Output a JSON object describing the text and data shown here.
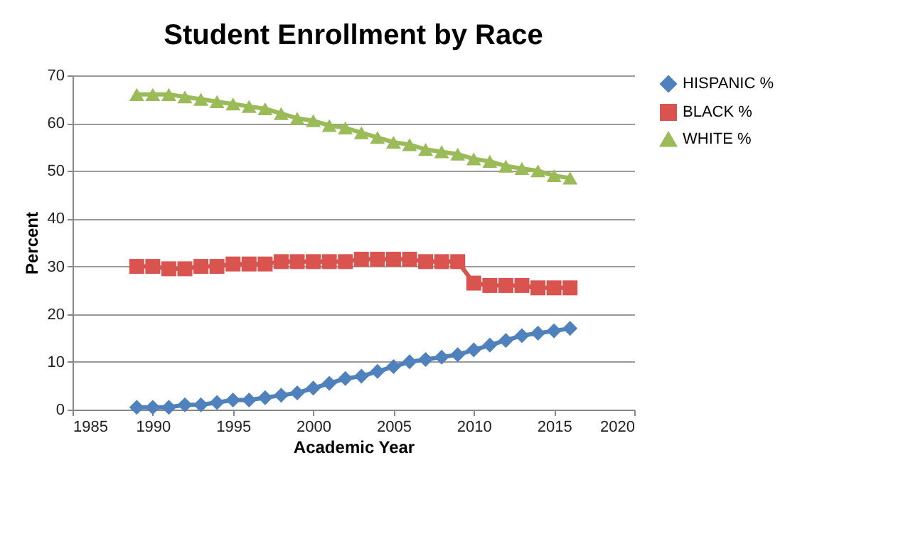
{
  "chart_data": {
    "type": "line",
    "title": "Student Enrollment by Race",
    "xlabel": "Academic Year",
    "ylabel": "Percent",
    "x": [
      1989,
      1990,
      1991,
      1992,
      1993,
      1994,
      1995,
      1996,
      1997,
      1998,
      1999,
      2000,
      2001,
      2002,
      2003,
      2004,
      2005,
      2006,
      2007,
      2008,
      2009,
      2010,
      2011,
      2012,
      2013,
      2014,
      2015,
      2016
    ],
    "series": [
      {
        "name": "HISPANIC %",
        "color": "#4f81bd",
        "marker": "diamond",
        "values": [
          0.5,
          0.5,
          0.5,
          1,
          1,
          1.5,
          2,
          2,
          2.5,
          3,
          3.5,
          4.5,
          5.5,
          6.5,
          7,
          8,
          9,
          10,
          10.5,
          11,
          11.5,
          12.5,
          13.5,
          14.5,
          15.5,
          16,
          16.5,
          17
        ]
      },
      {
        "name": "BLACK %",
        "color": "#d9534f",
        "marker": "square",
        "values": [
          30,
          30,
          29.5,
          29.5,
          30,
          30,
          30.5,
          30.5,
          30.5,
          31,
          31,
          31,
          31,
          31,
          31.5,
          31.5,
          31.5,
          31.5,
          31,
          31,
          31,
          26.5,
          26,
          26,
          26,
          25.5,
          25.5,
          25.5
        ]
      },
      {
        "name": "WHITE %",
        "color": "#9bbb59",
        "marker": "triangle",
        "values": [
          66,
          66,
          66,
          65.5,
          65,
          64.5,
          64,
          63.5,
          63,
          62,
          61,
          60.5,
          59.5,
          59,
          58,
          57,
          56,
          55.5,
          54.5,
          54,
          53.5,
          52.5,
          52,
          51,
          50.5,
          50,
          49,
          48.5
        ]
      }
    ],
    "xlim": [
      1985,
      2020
    ],
    "xticks": [
      1985,
      1990,
      1995,
      2000,
      2005,
      2010,
      2015,
      2020
    ],
    "ylim": [
      0,
      70
    ],
    "yticks": [
      0,
      10,
      20,
      30,
      40,
      50,
      60,
      70
    ],
    "grid": "y",
    "legend": "right"
  }
}
